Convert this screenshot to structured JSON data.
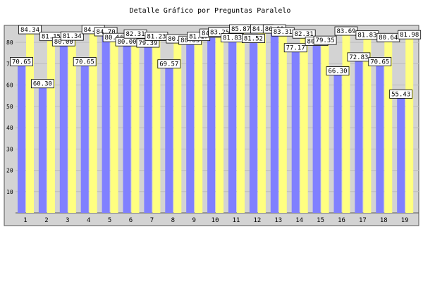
{
  "chart_data": {
    "type": "bar",
    "title": "Detalle Gráfico por Preguntas Paralelo",
    "categories": [
      "1",
      "2",
      "3",
      "4",
      "5",
      "6",
      "7",
      "8",
      "9",
      "10",
      "11",
      "12",
      "13",
      "14",
      "15",
      "16",
      "17",
      "18",
      "19"
    ],
    "series": [
      {
        "values": [
          70.65,
          60.3,
          80.0,
          70.65,
          84.7,
          80.0,
          79.39,
          69.57,
          80.65,
          84.0,
          81.83,
          81.52,
          86.0,
          77.17,
          80.21,
          66.3,
          72.83,
          70.65,
          55.43
        ]
      },
      {
        "values": [
          84.34,
          81.15,
          81.34,
          84.38,
          80.66,
          82.31,
          81.23,
          80.04,
          81.17,
          83.25,
          85.87,
          84.82,
          83.31,
          82.31,
          79.35,
          83.69,
          81.83,
          80.64,
          81.98
        ]
      }
    ],
    "ylim": [
      0,
      88
    ],
    "yticks": [
      10,
      20,
      30,
      40,
      50,
      60,
      70,
      80
    ],
    "grid": true,
    "colors": {
      "series1": "#8080ff",
      "series2": "#ffff80",
      "plot_bg": "#d3d3d3",
      "series1_top": "#4040ff",
      "xtick_highlight": "#ffffff",
      "xtick_normal": "#000000"
    },
    "highlighted_xticks": [
      "13",
      "14",
      "18"
    ]
  }
}
